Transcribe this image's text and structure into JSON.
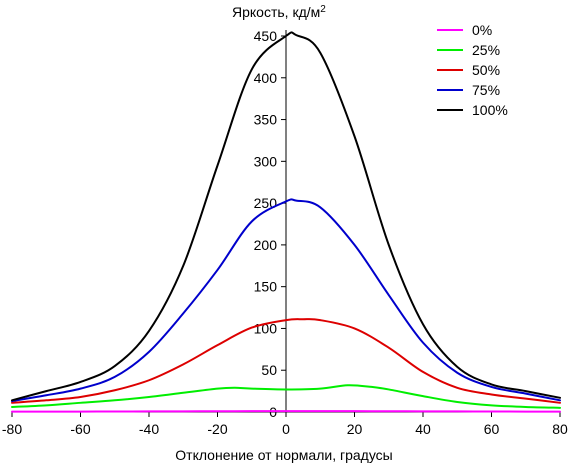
{
  "chart_data": {
    "type": "line",
    "ylabel": "Яркость, кд/м",
    "ylabel_superscript": "2",
    "xlabel": "Отклонение от нормали, градусы",
    "xlim": [
      -80,
      80
    ],
    "ylim": [
      0,
      450
    ],
    "x_ticks": [
      -80,
      -60,
      -40,
      -20,
      0,
      20,
      40,
      60,
      80
    ],
    "y_ticks": [
      0,
      50,
      100,
      150,
      200,
      250,
      300,
      350,
      400,
      450
    ],
    "grid": false,
    "legend_position": "top-right",
    "series": [
      {
        "name": "0%",
        "color": "#ff00ff",
        "x": [
          -80,
          -70,
          -60,
          -50,
          -40,
          -30,
          -20,
          -10,
          0,
          10,
          20,
          30,
          40,
          50,
          60,
          70,
          80
        ],
        "y": [
          0.5,
          0.5,
          0.5,
          0.6,
          0.7,
          0.8,
          0.9,
          1.0,
          1.0,
          1.0,
          1.0,
          0.9,
          0.8,
          0.7,
          0.6,
          0.5,
          0.5
        ]
      },
      {
        "name": "25%",
        "color": "#00ee00",
        "x": [
          -80,
          -70,
          -60,
          -50,
          -40,
          -30,
          -20,
          -15,
          -10,
          0,
          10,
          18,
          25,
          30,
          40,
          50,
          60,
          70,
          80
        ],
        "y": [
          6,
          8,
          11,
          14,
          18,
          23,
          28,
          29,
          28,
          27,
          28,
          32,
          30,
          27,
          19,
          12,
          8,
          6,
          5
        ]
      },
      {
        "name": "50%",
        "color": "#dd0000",
        "x": [
          -80,
          -70,
          -60,
          -50,
          -40,
          -30,
          -20,
          -10,
          0,
          5,
          10,
          20,
          30,
          40,
          50,
          60,
          70,
          80
        ],
        "y": [
          11,
          14,
          18,
          26,
          38,
          57,
          80,
          101,
          110,
          111,
          110,
          100,
          77,
          48,
          29,
          21,
          16,
          11
        ]
      },
      {
        "name": "75%",
        "color": "#0000cc",
        "x": [
          -80,
          -70,
          -60,
          -50,
          -40,
          -30,
          -20,
          -10,
          0,
          3,
          10,
          20,
          30,
          40,
          50,
          60,
          70,
          80
        ],
        "y": [
          13,
          20,
          28,
          42,
          72,
          118,
          170,
          228,
          252,
          253,
          245,
          200,
          140,
          83,
          47,
          30,
          22,
          14
        ]
      },
      {
        "name": "100%",
        "color": "#000000",
        "x": [
          -80,
          -70,
          -60,
          -50,
          -40,
          -30,
          -20,
          -10,
          0,
          3,
          10,
          20,
          30,
          40,
          50,
          60,
          70,
          80
        ],
        "y": [
          14,
          25,
          36,
          55,
          97,
          175,
          295,
          410,
          450,
          451,
          430,
          330,
          200,
          105,
          54,
          33,
          25,
          17
        ]
      }
    ]
  }
}
